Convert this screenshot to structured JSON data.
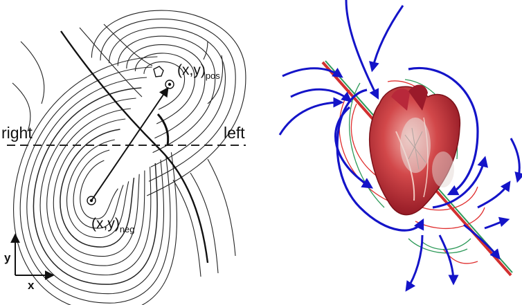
{
  "left_panel": {
    "label_pos_main": "(x,y)",
    "label_pos_sub": "pos",
    "label_neg_main": "(x,y)",
    "label_neg_sub": "neg",
    "label_right": "right",
    "label_left": "left",
    "axis_y": "y",
    "axis_x": "x"
  },
  "colors": {
    "isoline": "#222222",
    "arrow_blue": "#1414c8",
    "heart_red": "#c0202a",
    "field_red": "#e03030",
    "field_green": "#2e9a5a"
  }
}
